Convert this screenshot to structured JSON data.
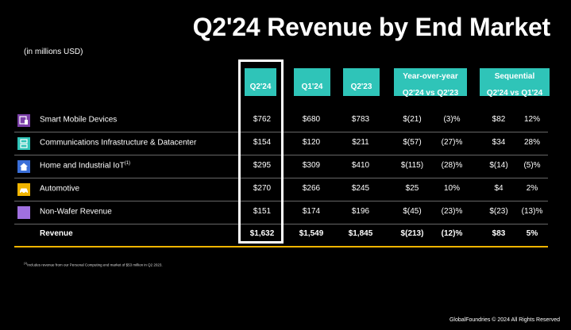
{
  "title": "Q2'24 Revenue by End Market",
  "units": "(in millions USD)",
  "columns": {
    "q224": "Q2'24",
    "q124": "Q1'24",
    "q223": "Q2'23",
    "yoy_title": "Year-over-year",
    "yoy_sub": "Q2'24 vs Q2'23",
    "seq_title": "Sequential",
    "seq_sub": "Q2'24 vs Q1'24"
  },
  "rows": [
    {
      "label": "Smart Mobile Devices",
      "sup": "",
      "icon": "smart-mobile-icon",
      "icon_color": "#7b3fa8",
      "q224": "$762",
      "q124": "$680",
      "q223": "$783",
      "yoy_abs": "$(21)",
      "yoy_pct": "(3)%",
      "seq_abs": "$82",
      "seq_pct": "12%"
    },
    {
      "label": "Communications Infrastructure & Datacenter",
      "sup": "",
      "icon": "datacenter-icon",
      "icon_color": "#2fc4b8",
      "q224": "$154",
      "q124": "$120",
      "q223": "$211",
      "yoy_abs": "$(57)",
      "yoy_pct": "(27)%",
      "seq_abs": "$34",
      "seq_pct": "28%"
    },
    {
      "label": "Home and Industrial IoT",
      "sup": "(1)",
      "icon": "home-icon",
      "icon_color": "#3a6fd8",
      "q224": "$295",
      "q124": "$309",
      "q223": "$410",
      "yoy_abs": "$(115)",
      "yoy_pct": "(28)%",
      "seq_abs": "$(14)",
      "seq_pct": "(5)%"
    },
    {
      "label": "Automotive",
      "sup": "",
      "icon": "car-icon",
      "icon_color": "#f0b400",
      "q224": "$270",
      "q124": "$266",
      "q223": "$245",
      "yoy_abs": "$25",
      "yoy_pct": "10%",
      "seq_abs": "$4",
      "seq_pct": "2%"
    },
    {
      "label": "Non-Wafer Revenue",
      "sup": "",
      "icon": "non-wafer-icon",
      "icon_color": "#a070e0",
      "q224": "$151",
      "q124": "$174",
      "q223": "$196",
      "yoy_abs": "$(45)",
      "yoy_pct": "(23)%",
      "seq_abs": "$(23)",
      "seq_pct": "(13)%"
    }
  ],
  "total": {
    "label": "Revenue",
    "q224": "$1,632",
    "q124": "$1,549",
    "q223": "$1,845",
    "yoy_abs": "$(213)",
    "yoy_pct": "(12)%",
    "seq_abs": "$83",
    "seq_pct": "5%"
  },
  "footnote": {
    "marker": "(1)",
    "text": "Includes revenue from our Personal Computing end market of $53 million in Q2 2023."
  },
  "copyright": "GlobalFoundries © 2024 All Rights Reserved",
  "colors": {
    "header_bg": "#2fc4b8",
    "total_line": "#f0b400",
    "background": "#000000"
  }
}
